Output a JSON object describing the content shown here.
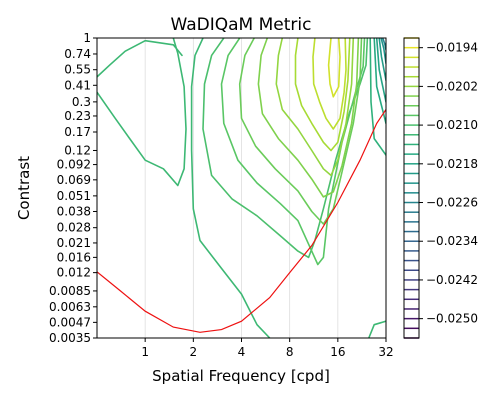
{
  "chart_data": {
    "type": "contour",
    "title": "WaDIQaM Metric",
    "xlabel": "Spatial Frequency [cpd]",
    "ylabel": "Contrast",
    "x_scale": "log",
    "y_scale": "log",
    "xlim": [
      0.5,
      32
    ],
    "ylim": [
      0.0035,
      1
    ],
    "grid": "vertical",
    "x_ticks": [
      {
        "value": 1,
        "label": "1"
      },
      {
        "value": 2,
        "label": "2"
      },
      {
        "value": 4,
        "label": "4"
      },
      {
        "value": 8,
        "label": "8"
      },
      {
        "value": 16,
        "label": "16"
      },
      {
        "value": 32,
        "label": "32"
      }
    ],
    "y_ticks": [
      {
        "value": 1,
        "label": "1"
      },
      {
        "value": 0.74,
        "label": "0.74"
      },
      {
        "value": 0.55,
        "label": "0.55"
      },
      {
        "value": 0.41,
        "label": "0.41"
      },
      {
        "value": 0.3,
        "label": "0.3"
      },
      {
        "value": 0.23,
        "label": "0.23"
      },
      {
        "value": 0.17,
        "label": "0.17"
      },
      {
        "value": 0.12,
        "label": "0.12"
      },
      {
        "value": 0.092,
        "label": "0.092"
      },
      {
        "value": 0.069,
        "label": "0.069"
      },
      {
        "value": 0.051,
        "label": "0.051"
      },
      {
        "value": 0.038,
        "label": "0.038"
      },
      {
        "value": 0.028,
        "label": "0.028"
      },
      {
        "value": 0.021,
        "label": "0.021"
      },
      {
        "value": 0.016,
        "label": "0.016"
      },
      {
        "value": 0.012,
        "label": "0.012"
      },
      {
        "value": 0.0085,
        "label": "0.0085"
      },
      {
        "value": 0.0063,
        "label": "0.0063"
      },
      {
        "value": 0.0047,
        "label": "0.0047"
      },
      {
        "value": 0.0035,
        "label": "0.0035"
      }
    ],
    "colorbar": {
      "min": -0.0254,
      "max": -0.0192,
      "step": 0.0002,
      "ticks": [
        {
          "value": -0.0194,
          "label": "−0.0194"
        },
        {
          "value": -0.0202,
          "label": "−0.0202"
        },
        {
          "value": -0.021,
          "label": "−0.0210"
        },
        {
          "value": -0.0218,
          "label": "−0.0218"
        },
        {
          "value": -0.0226,
          "label": "−0.0226"
        },
        {
          "value": -0.0234,
          "label": "−0.0234"
        },
        {
          "value": -0.0242,
          "label": "−0.0242"
        },
        {
          "value": -0.025,
          "label": "−0.0250"
        }
      ]
    },
    "contours": [
      {
        "level": -0.0212,
        "points": [
          [
            0.5,
            0.48
          ],
          [
            0.6,
            0.6
          ],
          [
            0.75,
            0.78
          ],
          [
            1,
            0.95
          ],
          [
            1.5,
            0.88
          ],
          [
            1.7,
            0.72
          ]
        ]
      },
      {
        "level": -0.0212,
        "points": [
          [
            0.5,
            0.36
          ],
          [
            0.65,
            0.22
          ],
          [
            0.8,
            0.15
          ],
          [
            1,
            0.1
          ],
          [
            1.3,
            0.085
          ],
          [
            1.6,
            0.062
          ],
          [
            1.75,
            0.085
          ],
          [
            1.8,
            0.18
          ],
          [
            1.75,
            0.4
          ],
          [
            1.6,
            0.75
          ],
          [
            1.5,
            1
          ]
        ]
      },
      {
        "level": -0.0212,
        "points": [
          [
            2.3,
            1
          ],
          [
            2.05,
            0.72
          ],
          [
            1.95,
            0.4
          ],
          [
            1.95,
            0.12
          ],
          [
            2.0,
            0.04
          ],
          [
            2.2,
            0.022
          ],
          [
            3,
            0.013
          ],
          [
            4,
            0.008
          ],
          [
            5,
            0.0045
          ],
          [
            6,
            0.0035
          ]
        ]
      },
      {
        "level": -0.0212,
        "points": [
          [
            25,
            0.0035
          ],
          [
            27,
            0.0045
          ],
          [
            32,
            0.0048
          ]
        ]
      },
      {
        "level": -0.021,
        "points": [
          [
            3.1,
            1
          ],
          [
            2.6,
            0.72
          ],
          [
            2.35,
            0.42
          ],
          [
            2.3,
            0.18
          ],
          [
            2.6,
            0.075
          ],
          [
            3.5,
            0.048
          ],
          [
            5,
            0.035
          ],
          [
            7,
            0.024
          ],
          [
            9,
            0.018
          ],
          [
            10.5,
            0.016
          ],
          [
            11.5,
            0.022
          ],
          [
            13,
            0.04
          ],
          [
            15.5,
            0.1
          ],
          [
            19,
            0.25
          ],
          [
            22,
            0.42
          ],
          [
            24,
            0.6
          ],
          [
            24.5,
            1
          ]
        ]
      },
      {
        "level": -0.0208,
        "points": [
          [
            3.9,
            1
          ],
          [
            3.3,
            0.72
          ],
          [
            3.0,
            0.42
          ],
          [
            3.1,
            0.2
          ],
          [
            3.8,
            0.1
          ],
          [
            5,
            0.065
          ],
          [
            7,
            0.044
          ],
          [
            9,
            0.032
          ],
          [
            12,
            0.014
          ],
          [
            13,
            0.016
          ],
          [
            14,
            0.04
          ],
          [
            17,
            0.14
          ],
          [
            20.5,
            0.35
          ],
          [
            23,
            0.58
          ],
          [
            23.5,
            1
          ]
        ]
      },
      {
        "level": -0.0206,
        "points": [
          [
            4.8,
            1
          ],
          [
            4.2,
            0.72
          ],
          [
            3.9,
            0.42
          ],
          [
            4.0,
            0.22
          ],
          [
            4.9,
            0.13
          ],
          [
            6.5,
            0.085
          ],
          [
            9,
            0.056
          ],
          [
            11,
            0.038
          ],
          [
            13,
            0.03
          ],
          [
            15,
            0.04
          ],
          [
            17,
            0.08
          ],
          [
            20,
            0.2
          ],
          [
            22,
            0.45
          ],
          [
            22.5,
            1
          ]
        ]
      },
      {
        "level": -0.0204,
        "points": [
          [
            5.8,
            1
          ],
          [
            5.3,
            0.72
          ],
          [
            5.1,
            0.42
          ],
          [
            5.4,
            0.24
          ],
          [
            6.8,
            0.15
          ],
          [
            9,
            0.1
          ],
          [
            11,
            0.07
          ],
          [
            13,
            0.05
          ],
          [
            15,
            0.055
          ],
          [
            17,
            0.09
          ],
          [
            19.5,
            0.2
          ],
          [
            21,
            0.42
          ],
          [
            21.5,
            1
          ]
        ]
      },
      {
        "level": -0.0202,
        "points": [
          [
            7.2,
            1
          ],
          [
            6.8,
            0.72
          ],
          [
            6.6,
            0.42
          ],
          [
            7.2,
            0.26
          ],
          [
            9,
            0.18
          ],
          [
            11,
            0.12
          ],
          [
            13,
            0.085
          ],
          [
            14.5,
            0.075
          ],
          [
            16,
            0.1
          ],
          [
            18,
            0.2
          ],
          [
            19.5,
            0.42
          ],
          [
            20,
            1
          ]
        ]
      },
      {
        "level": -0.02,
        "points": [
          [
            9,
            1
          ],
          [
            8.7,
            0.72
          ],
          [
            8.7,
            0.42
          ],
          [
            9.5,
            0.28
          ],
          [
            11,
            0.2
          ],
          [
            13,
            0.14
          ],
          [
            14.5,
            0.12
          ],
          [
            16,
            0.14
          ],
          [
            17.5,
            0.25
          ],
          [
            18.5,
            0.45
          ],
          [
            19,
            1
          ]
        ]
      },
      {
        "level": -0.0198,
        "points": [
          [
            11.5,
            1
          ],
          [
            11.2,
            0.7
          ],
          [
            11.3,
            0.42
          ],
          [
            12.3,
            0.3
          ],
          [
            13.5,
            0.22
          ],
          [
            15,
            0.18
          ],
          [
            16.5,
            0.22
          ],
          [
            17.5,
            0.36
          ],
          [
            18,
            0.55
          ],
          [
            17.8,
            1
          ]
        ]
      },
      {
        "level": -0.0196,
        "points": [
          [
            14.5,
            1
          ],
          [
            14,
            0.6
          ],
          [
            14.3,
            0.42
          ],
          [
            15,
            0.33
          ],
          [
            16.2,
            0.4
          ],
          [
            16.5,
            0.7
          ],
          [
            16.2,
            1
          ]
        ]
      },
      {
        "level": -0.0214,
        "points": [
          [
            25.5,
            1
          ],
          [
            25.8,
            0.3
          ],
          [
            27,
            0.15
          ],
          [
            32,
            0.11
          ]
        ]
      },
      {
        "level": -0.0216,
        "points": [
          [
            27,
            1
          ],
          [
            28,
            0.4
          ],
          [
            32,
            0.2
          ]
        ]
      },
      {
        "level": -0.0218,
        "points": [
          [
            28,
            1
          ],
          [
            29,
            0.55
          ],
          [
            32,
            0.3
          ]
        ]
      },
      {
        "level": -0.022,
        "points": [
          [
            29,
            1
          ],
          [
            30,
            0.7
          ],
          [
            32,
            0.45
          ]
        ]
      },
      {
        "level": -0.0222,
        "points": [
          [
            29.8,
            1
          ],
          [
            31,
            0.82
          ],
          [
            32,
            0.62
          ]
        ]
      },
      {
        "level": -0.0226,
        "points": [
          [
            30.5,
            1
          ],
          [
            31.4,
            0.9
          ],
          [
            32,
            0.8
          ]
        ]
      }
    ],
    "threshold_curve": {
      "color": "#ee1111",
      "points": [
        [
          0.5,
          0.0122
        ],
        [
          0.7,
          0.0085
        ],
        [
          1,
          0.0058
        ],
        [
          1.5,
          0.0043
        ],
        [
          2.2,
          0.0039
        ],
        [
          3,
          0.0041
        ],
        [
          4,
          0.0048
        ],
        [
          6,
          0.0075
        ],
        [
          8,
          0.012
        ],
        [
          11,
          0.02
        ],
        [
          16,
          0.045
        ],
        [
          22,
          0.1
        ],
        [
          28,
          0.2
        ],
        [
          32,
          0.26
        ]
      ]
    }
  }
}
